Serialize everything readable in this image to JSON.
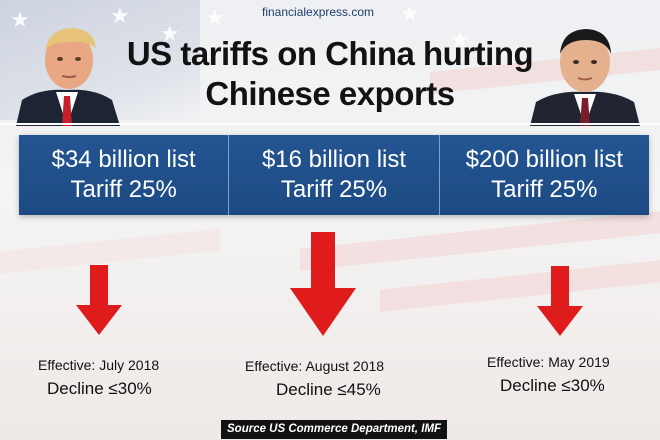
{
  "site": "financialexpress.com",
  "title_line1": "US tariffs on China hurting",
  "title_line2": "Chinese exports",
  "tranches": [
    {
      "list": "$34 billion list",
      "tariff": "Tariff 25%",
      "effective": "Effective: July 2018",
      "decline": "Decline ≤30%"
    },
    {
      "list": "$16 billion list",
      "tariff": "Tariff 25%",
      "effective": "Effective: August 2018",
      "decline": "Decline ≤45%"
    },
    {
      "list": "$200 billion list",
      "tariff": "Tariff 25%",
      "effective": "Effective: May 2019",
      "decline": "Decline ≤30%"
    }
  ],
  "source": "Source US Commerce Department, IMF",
  "colors": {
    "box": "#1f4f8b",
    "arrow": "#e01b1b",
    "source_bg": "#111111"
  }
}
